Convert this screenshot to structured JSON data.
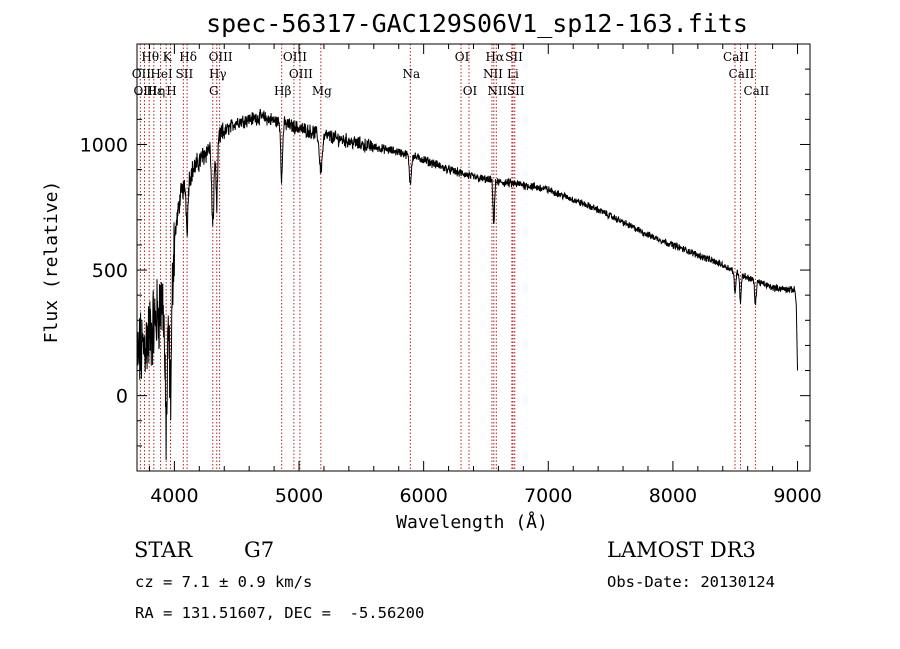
{
  "chart_data": {
    "type": "line",
    "title": "spec-56317-GAC129S06V1_sp12-163.fits",
    "xlabel": "Wavelength (Å)",
    "ylabel": "Flux (relative)",
    "xlim": [
      3700,
      9100
    ],
    "ylim": [
      -300,
      1400
    ],
    "x_ticks": [
      4000,
      5000,
      6000,
      7000,
      8000,
      9000
    ],
    "x_tick_labels": [
      "4000",
      "5000",
      "6000",
      "7000",
      "8000",
      "9000"
    ],
    "y_ticks": [
      0,
      500,
      1000
    ],
    "y_tick_labels": [
      "0",
      "500",
      "1000"
    ],
    "x_minor_step": 200,
    "y_minor_step": 100,
    "continuum_anchors": {
      "x": [
        3700,
        3760,
        3850,
        3950,
        4050,
        4150,
        4300,
        4400,
        4500,
        4700,
        4900,
        5100,
        5300,
        5500,
        5800,
        6000,
        6200,
        6400,
        6600,
        6800,
        7000,
        7200,
        7400,
        7600,
        7800,
        8000,
        8200,
        8400,
        8600,
        8800,
        8980
      ],
      "y": [
        150,
        200,
        300,
        450,
        800,
        900,
        1000,
        1050,
        1090,
        1110,
        1080,
        1050,
        1025,
        1000,
        970,
        940,
        900,
        870,
        850,
        840,
        820,
        780,
        740,
        690,
        640,
        600,
        560,
        520,
        470,
        430,
        420
      ]
    },
    "absorption_features": [
      {
        "x": 3934,
        "depth": 550,
        "width": 10
      },
      {
        "x": 3969,
        "depth": 500,
        "width": 10
      },
      {
        "x": 4102,
        "depth": 180,
        "width": 7
      },
      {
        "x": 4308,
        "depth": 330,
        "width": 9
      },
      {
        "x": 4340,
        "depth": 250,
        "width": 7
      },
      {
        "x": 4861,
        "depth": 220,
        "width": 7
      },
      {
        "x": 5175,
        "depth": 140,
        "width": 12
      },
      {
        "x": 5893,
        "depth": 110,
        "width": 8
      },
      {
        "x": 6563,
        "depth": 170,
        "width": 6
      },
      {
        "x": 8498,
        "depth": 90,
        "width": 6
      },
      {
        "x": 8542,
        "depth": 110,
        "width": 6
      },
      {
        "x": 8662,
        "depth": 100,
        "width": 6
      }
    ],
    "spectrum_end": {
      "x": 9000,
      "y": 100
    },
    "lines": [
      {
        "name": "Hθ",
        "wavelength": 3798,
        "row": 0
      },
      {
        "name": "OII",
        "wavelength": 3727,
        "row": 1
      },
      {
        "name": "OIII",
        "wavelength": 3760,
        "row": 2
      },
      {
        "name": "Hε",
        "wavelength": 3835,
        "row": 2
      },
      {
        "name": "HeI",
        "wavelength": 3889,
        "row": 1
      },
      {
        "name": "η",
        "wavelength": 3889,
        "row": 2
      },
      {
        "name": "K",
        "wavelength": 3934,
        "row": 0
      },
      {
        "name": "H",
        "wavelength": 3969,
        "row": 2
      },
      {
        "name": "SII",
        "wavelength": 4072,
        "row": 1
      },
      {
        "name": "Hδ",
        "wavelength": 4102,
        "row": 0
      },
      {
        "name": "OIII",
        "wavelength": 4363,
        "row": 0
      },
      {
        "name": "Hγ",
        "wavelength": 4340,
        "row": 1
      },
      {
        "name": "G",
        "wavelength": 4308,
        "row": 2
      },
      {
        "name": "Hβ",
        "wavelength": 4861,
        "row": 2
      },
      {
        "name": "OIII",
        "wavelength": 4959,
        "row": 0
      },
      {
        "name": "OIII",
        "wavelength": 5007,
        "row": 1
      },
      {
        "name": "Mg",
        "wavelength": 5175,
        "row": 2
      },
      {
        "name": "Na",
        "wavelength": 5893,
        "row": 1
      },
      {
        "name": "OI",
        "wavelength": 6300,
        "row": 0
      },
      {
        "name": "OI",
        "wavelength": 6364,
        "row": 2
      },
      {
        "name": "Hα",
        "wavelength": 6563,
        "row": 0
      },
      {
        "name": "NII",
        "wavelength": 6548,
        "row": 1
      },
      {
        "name": "NII",
        "wavelength": 6583,
        "row": 2
      },
      {
        "name": "SII",
        "wavelength": 6717,
        "row": 0
      },
      {
        "name": "Li",
        "wavelength": 6708,
        "row": 1
      },
      {
        "name": "SII",
        "wavelength": 6731,
        "row": 2
      },
      {
        "name": "CaII",
        "wavelength": 8498,
        "row": 0
      },
      {
        "name": "CaII",
        "wavelength": 8542,
        "row": 1
      },
      {
        "name": "CaII",
        "wavelength": 8662,
        "row": 2
      }
    ]
  },
  "info": {
    "class_label": "STAR",
    "subclass": "G7",
    "survey": "LAMOST DR3",
    "cz": "cz = 7.1 ± 0.9 km/s",
    "obs_date": "Obs-Date: 20130124",
    "coords": "RA = 131.51607, DEC =  -5.56200"
  },
  "colors": {
    "spectrum": "#000000",
    "line_marker": "#b22222",
    "axes": "#000000",
    "background": "#ffffff"
  }
}
